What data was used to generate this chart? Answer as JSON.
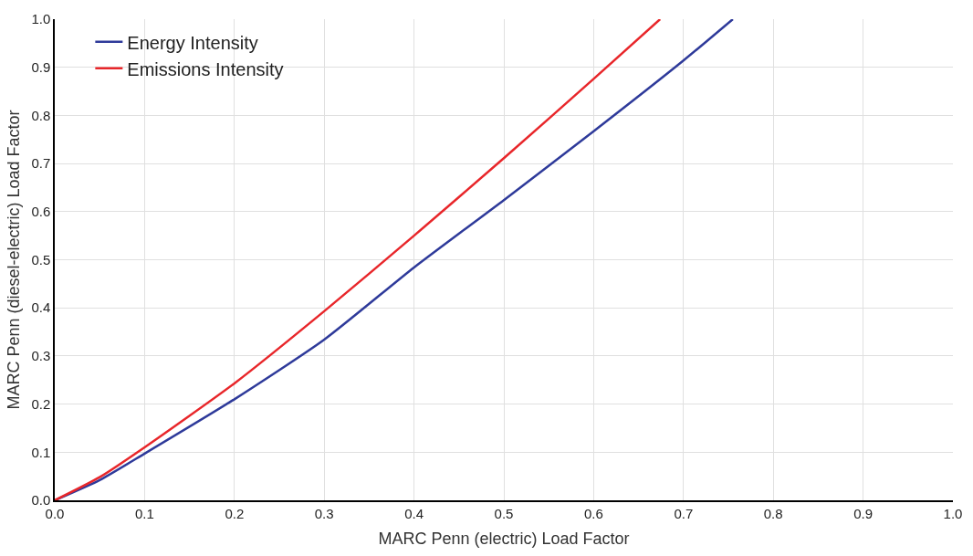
{
  "chart_data": {
    "type": "line",
    "xlabel": "MARC Penn (electric) Load Factor",
    "ylabel": "MARC Penn (diesel-electric) Load Factor",
    "xlim": [
      0,
      1
    ],
    "ylim": [
      0,
      1
    ],
    "xticks": [
      {
        "value": 0,
        "label": "0.0"
      },
      0.1,
      0.2,
      0.3,
      0.4,
      0.5,
      0.6,
      0.7,
      0.8,
      0.9,
      {
        "value": 1,
        "label": "1.0"
      }
    ],
    "yticks": [
      {
        "value": 0,
        "label": "0.0"
      },
      0.1,
      0.2,
      0.3,
      0.4,
      0.5,
      0.6,
      0.7,
      0.8,
      0.9,
      {
        "value": 1,
        "label": "1.0"
      }
    ],
    "grid": true,
    "legend": "top left",
    "marker": "none",
    "line_style": "solid",
    "series": [
      {
        "name": "Energy Intensity",
        "color": "#2e3a9a",
        "x": [
          0,
          0.05,
          0.1,
          0.2,
          0.3,
          0.4,
          0.5,
          0.6,
          0.7,
          0.755
        ],
        "values": [
          0,
          0.042,
          0.097,
          0.21,
          0.334,
          0.484,
          0.624,
          0.767,
          0.914,
          1.0
        ]
      },
      {
        "name": "Emissions Intensity",
        "color": "#e8262a",
        "x": [
          0,
          0.05,
          0.1,
          0.2,
          0.3,
          0.4,
          0.5,
          0.6,
          0.674
        ],
        "values": [
          0,
          0.048,
          0.11,
          0.243,
          0.393,
          0.55,
          0.711,
          0.876,
          1.0
        ]
      }
    ]
  }
}
